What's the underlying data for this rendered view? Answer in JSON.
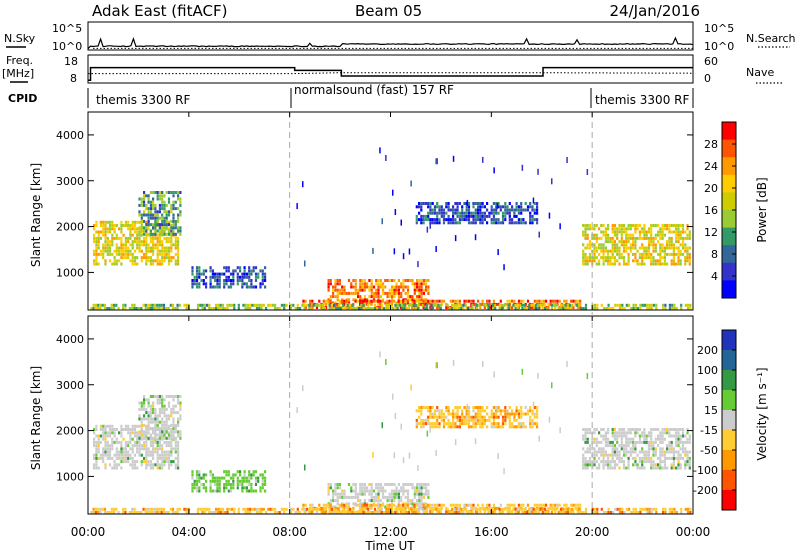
{
  "header": {
    "title": "Adak East (fitACF)",
    "beam": "Beam 05",
    "date": "24/Jan/2016"
  },
  "nsky_panel": {
    "left_label": "N.Sky",
    "right_label": "N.Search",
    "tick_high": "10^5",
    "tick_low": "10^0"
  },
  "freq_panel": {
    "left_label_1": "Freq.",
    "left_label_2": "[MHz]",
    "right_label": "Nave",
    "left_ticks": [
      "18",
      "8"
    ],
    "right_ticks": [
      "60",
      "0"
    ]
  },
  "cpid_panel": {
    "label": "CPID",
    "segments": [
      {
        "label": "themis 3300 RF",
        "start": 0,
        "end": 8
      },
      {
        "label": "normalsound (fast) 157 RF",
        "start": 8,
        "end": 20
      },
      {
        "label": "themis 3300 RF",
        "start": 20,
        "end": 24
      }
    ]
  },
  "power_panel": {
    "ylabel": "Slant Range [km]",
    "yticks": [
      "4000",
      "3000",
      "2000",
      "1000"
    ],
    "colorbar_label": "Power [dB]",
    "colorbar_ticks": [
      "28",
      "24",
      "20",
      "16",
      "12",
      "8",
      "4"
    ],
    "colorbar_colors": [
      "#ff0000",
      "#ff5500",
      "#ff9900",
      "#ffcc00",
      "#cccc00",
      "#99cc33",
      "#339966",
      "#336699",
      "#3333cc",
      "#0000ff"
    ]
  },
  "velocity_panel": {
    "ylabel": "Slant Range [km]",
    "yticks": [
      "4000",
      "3000",
      "2000",
      "1000"
    ],
    "colorbar_label": "Velocity [m s⁻¹]",
    "colorbar_ticks": [
      "200",
      "100",
      "50",
      "15",
      "-15",
      "-50",
      "-100",
      "-200"
    ],
    "colorbar_colors": [
      "#2233bb",
      "#226699",
      "#339944",
      "#66cc33",
      "#cccccc",
      "#ffcc33",
      "#ff9900",
      "#ff5500",
      "#ff0000"
    ]
  },
  "x_axis": {
    "label": "Time UT",
    "ticks": [
      "00:00",
      "04:00",
      "08:00",
      "12:00",
      "16:00",
      "20:00",
      "00:00"
    ]
  },
  "chart_data": [
    {
      "type": "line",
      "title": "N.Sky / N.Search",
      "x_range": [
        0,
        24
      ],
      "noise_sky_level_log10": [
        {
          "x": 0,
          "y": 0.2
        },
        {
          "x": 0.1,
          "y": 0.6
        },
        {
          "x": 10,
          "y": 0.6
        },
        {
          "x": 10.1,
          "y": 1.0
        },
        {
          "x": 24,
          "y": 0.9
        }
      ],
      "noise_search_level_log10": 0.3
    },
    {
      "type": "line",
      "title": "Freq / Nave",
      "freq_mhz": [
        {
          "x": 0,
          "y": 9
        },
        {
          "x": 0.1,
          "y": 13.5
        },
        {
          "x": 8,
          "y": 13.5
        },
        {
          "x": 8.2,
          "y": 12.5
        },
        {
          "x": 10,
          "y": 12.5
        },
        {
          "x": 10.05,
          "y": 10.5
        },
        {
          "x": 18,
          "y": 10.5
        },
        {
          "x": 18.05,
          "y": 13.5
        },
        {
          "x": 24,
          "y": 13.5
        }
      ],
      "nave": [
        {
          "x": 0,
          "y": 20
        },
        {
          "x": 8,
          "y": 20
        },
        {
          "x": 10,
          "y": 22
        },
        {
          "x": 18,
          "y": 22
        },
        {
          "x": 24,
          "y": 21
        }
      ]
    },
    {
      "type": "heatmap",
      "title": "Power [dB]",
      "x_range": [
        0,
        24
      ],
      "y_range": [
        180,
        4500
      ],
      "regions": [
        {
          "t0": 0.2,
          "t1": 3.6,
          "r0": 1150,
          "r1": 2100,
          "level": 18
        },
        {
          "t0": 2.0,
          "t1": 3.7,
          "r0": 1800,
          "r1": 2750,
          "level": 10
        },
        {
          "t0": 4.1,
          "t1": 7.0,
          "r0": 650,
          "r1": 1100,
          "level": 5
        },
        {
          "t0": 9.5,
          "t1": 13.5,
          "r0": 300,
          "r1": 800,
          "level": 24
        },
        {
          "t0": 8.5,
          "t1": 19.5,
          "r0": 200,
          "r1": 350,
          "level": 26
        },
        {
          "t0": 13.0,
          "t1": 17.8,
          "r0": 2050,
          "r1": 2500,
          "level": 5
        },
        {
          "t0": 19.6,
          "t1": 23.9,
          "r0": 1150,
          "r1": 2050,
          "level": 18
        },
        {
          "t0": 0.0,
          "t1": 24.0,
          "r0": 180,
          "r1": 280,
          "level": 14
        }
      ]
    },
    {
      "type": "heatmap",
      "title": "Velocity [m s⁻¹]",
      "x_range": [
        0,
        24
      ],
      "y_range": [
        180,
        4500
      ],
      "regions": [
        {
          "t0": 0.2,
          "t1": 3.6,
          "r0": 1150,
          "r1": 2100,
          "level": 0
        },
        {
          "t0": 2.0,
          "t1": 3.7,
          "r0": 1800,
          "r1": 2750,
          "level": 0
        },
        {
          "t0": 4.1,
          "t1": 7.0,
          "r0": 650,
          "r1": 1100,
          "level": 40
        },
        {
          "t0": 9.5,
          "t1": 13.5,
          "r0": 300,
          "r1": 800,
          "level": 0
        },
        {
          "t0": 8.5,
          "t1": 19.5,
          "r0": 200,
          "r1": 350,
          "level": -40
        },
        {
          "t0": 13.0,
          "t1": 17.8,
          "r0": 2050,
          "r1": 2500,
          "level": -30
        },
        {
          "t0": 19.6,
          "t1": 23.9,
          "r0": 1150,
          "r1": 2050,
          "level": 0
        },
        {
          "t0": 0.0,
          "t1": 24.0,
          "r0": 180,
          "r1": 280,
          "level": -20
        }
      ]
    }
  ]
}
